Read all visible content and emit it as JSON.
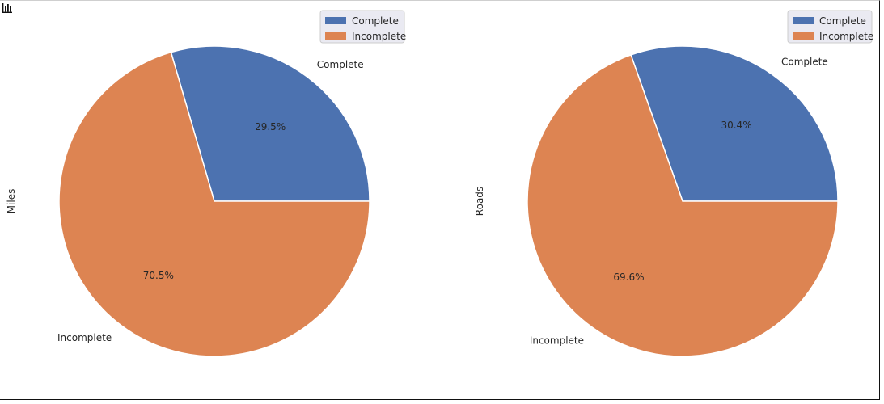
{
  "icon": {
    "name": "bar-chart-icon"
  },
  "colors": {
    "complete": "#4c72b0",
    "incomplete": "#dd8452",
    "legend_bg": "#eaeaf2",
    "legend_border": "#cccccc"
  },
  "chart_data": [
    {
      "type": "pie",
      "ylabel": "Miles",
      "categories": [
        "Complete",
        "Incomplete"
      ],
      "values": [
        29.5,
        70.5
      ],
      "autopct": [
        "29.5%",
        "70.5%"
      ],
      "legend": [
        "Complete",
        "Incomplete"
      ],
      "legend_placement": "top-right"
    },
    {
      "type": "pie",
      "ylabel": "Roads",
      "categories": [
        "Complete",
        "Incomplete"
      ],
      "values": [
        30.4,
        69.6
      ],
      "autopct": [
        "30.4%",
        "69.6%"
      ],
      "legend": [
        "Complete",
        "Incomplete"
      ],
      "legend_placement": "top-right"
    }
  ]
}
